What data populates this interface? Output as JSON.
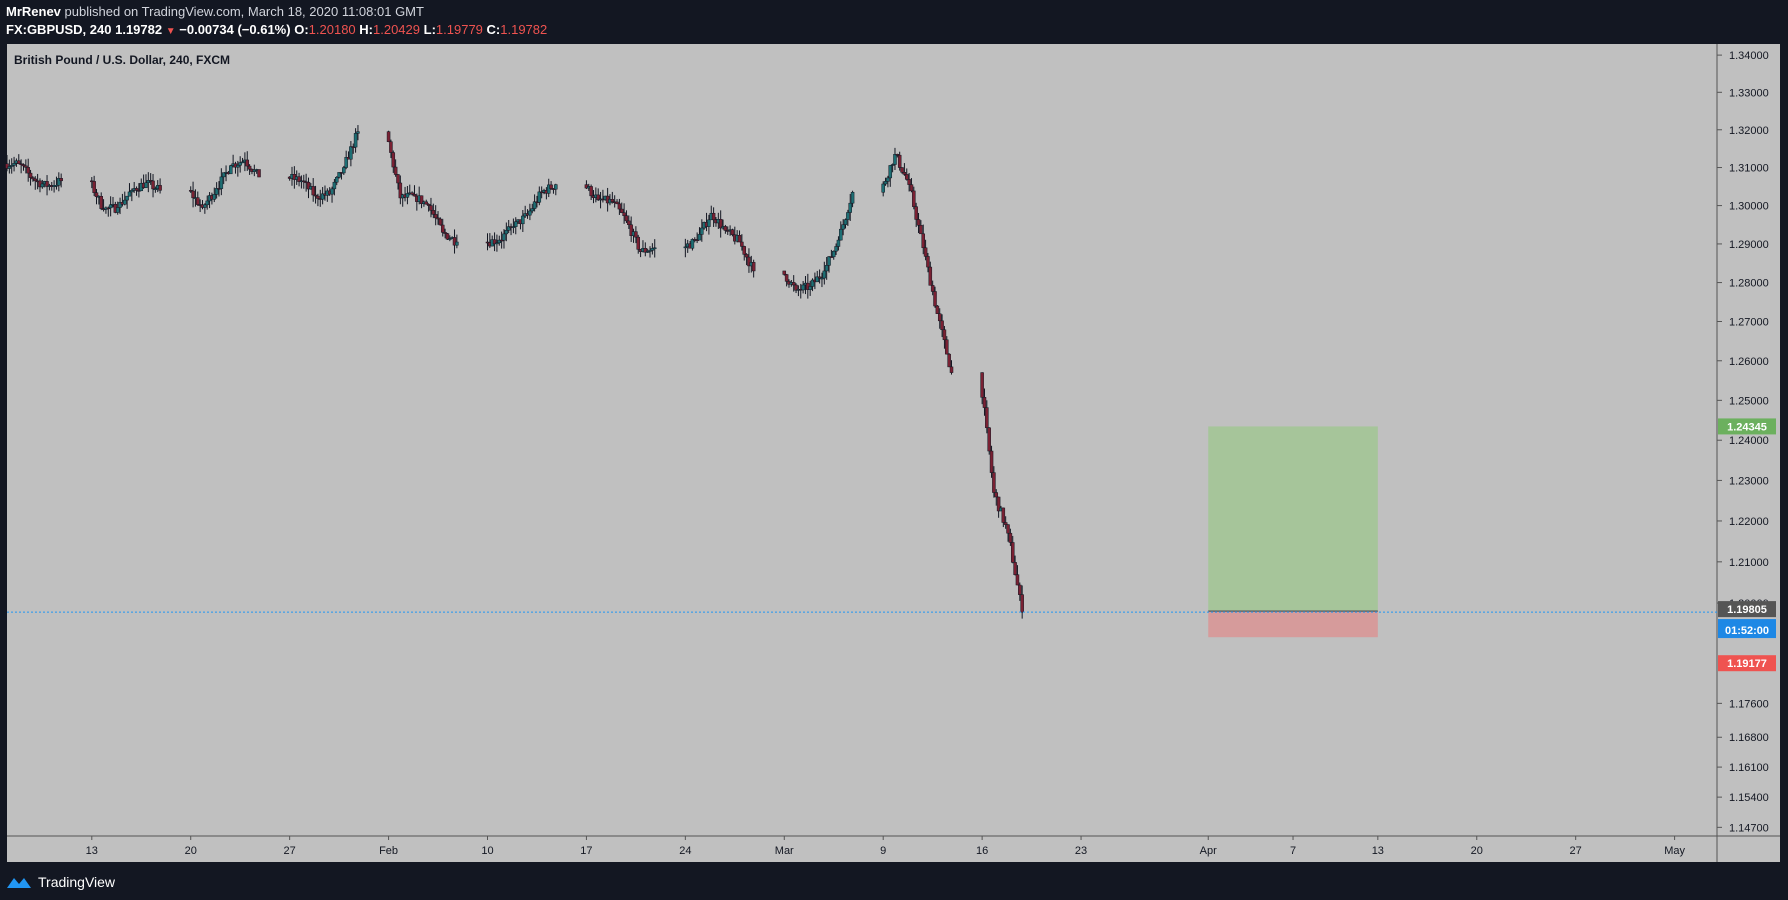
{
  "header": {
    "author": "MrRenev",
    "published": "published on TradingView.com, March 18, 2020 11:08:01 GMT",
    "symbol": "FX:GBPUSD, 240",
    "last": "1.19782",
    "change": "−0.00734 (−0.61%)",
    "o_label": "O:",
    "o": "1.20180",
    "h_label": "H:",
    "h": "1.20429",
    "l_label": "L:",
    "l": "1.19779",
    "c_label": "C:",
    "c": "1.19782"
  },
  "footer": {
    "brand": "TradingView",
    "icon": "tradingview-logo-icon"
  },
  "colors": {
    "plot_bg": "#c0c0c0",
    "page_bg": "#131722",
    "up": "#1e6f74",
    "down": "#7a2133",
    "target": "#a6c59a",
    "stop": "#d69b9b",
    "price_line": "#2196f3"
  },
  "chart_data": {
    "type": "candlestick",
    "title": "British Pound / U.S. Dollar, 240, FXCM",
    "x_ticks": [
      "13",
      "20",
      "27",
      "Feb",
      "10",
      "17",
      "24",
      "Mar",
      "9",
      "16",
      "23",
      "Apr",
      "7",
      "13",
      "20",
      "27",
      "May"
    ],
    "y_ticks": [
      "1.34000",
      "1.33000",
      "1.32000",
      "1.31000",
      "1.30000",
      "1.29000",
      "1.28000",
      "1.27000",
      "1.26000",
      "1.25000",
      "1.24000",
      "1.23000",
      "1.22000",
      "1.21000",
      "1.20000",
      "1.17600",
      "1.16800",
      "1.16100",
      "1.15400",
      "1.14700"
    ],
    "y_scale": "log",
    "ylim": [
      1.145,
      1.343
    ],
    "xlim": [
      "2020-01-07",
      "2020-05-07"
    ],
    "price_labels": [
      {
        "value": "1.24345",
        "role": "target",
        "color": "#6cb05e"
      },
      {
        "value": "1.19805",
        "role": "entry",
        "color": "#555555"
      },
      {
        "value": "1.19782",
        "role": "last",
        "color": "#1e88e5"
      },
      {
        "value": "01:52:00",
        "role": "countdown",
        "color": "#1e88e5"
      },
      {
        "value": "1.19177",
        "role": "stop",
        "color": "#ef5350"
      }
    ],
    "position": {
      "type": "short",
      "entry": 1.19805,
      "target": 1.24345,
      "stop": 1.19177,
      "start": "2020-04-01",
      "end": "2020-04-13"
    },
    "last_price": 1.19782,
    "series": [
      {
        "date": "2020-01-07",
        "close": 1.311
      },
      {
        "date": "2020-01-08",
        "close": 1.307
      },
      {
        "date": "2020-01-09",
        "close": 1.305
      },
      {
        "date": "2020-01-10",
        "close": 1.3065
      },
      {
        "date": "2020-01-13",
        "close": 1.299
      },
      {
        "date": "2020-01-14",
        "close": 1.2995
      },
      {
        "date": "2020-01-15",
        "close": 1.304
      },
      {
        "date": "2020-01-16",
        "close": 1.306
      },
      {
        "date": "2020-01-17",
        "close": 1.304
      },
      {
        "date": "2020-01-20",
        "close": 1.2995
      },
      {
        "date": "2020-01-21",
        "close": 1.3045
      },
      {
        "date": "2020-01-22",
        "close": 1.3105
      },
      {
        "date": "2020-01-23",
        "close": 1.312
      },
      {
        "date": "2020-01-24",
        "close": 1.3075
      },
      {
        "date": "2020-01-27",
        "close": 1.3065
      },
      {
        "date": "2020-01-28",
        "close": 1.3025
      },
      {
        "date": "2020-01-29",
        "close": 1.303
      },
      {
        "date": "2020-01-30",
        "close": 1.31
      },
      {
        "date": "2020-01-31",
        "close": 1.3195
      },
      {
        "date": "2020-02-03",
        "close": 1.302
      },
      {
        "date": "2020-02-04",
        "close": 1.3025
      },
      {
        "date": "2020-02-05",
        "close": 1.3
      },
      {
        "date": "2020-02-06",
        "close": 1.293
      },
      {
        "date": "2020-02-07",
        "close": 1.2905
      },
      {
        "date": "2020-02-10",
        "close": 1.291
      },
      {
        "date": "2020-02-11",
        "close": 1.2945
      },
      {
        "date": "2020-02-12",
        "close": 1.2975
      },
      {
        "date": "2020-02-13",
        "close": 1.3035
      },
      {
        "date": "2020-02-14",
        "close": 1.3055
      },
      {
        "date": "2020-02-17",
        "close": 1.3015
      },
      {
        "date": "2020-02-18",
        "close": 1.301
      },
      {
        "date": "2020-02-19",
        "close": 1.296
      },
      {
        "date": "2020-02-20",
        "close": 1.288
      },
      {
        "date": "2020-02-21",
        "close": 1.289
      },
      {
        "date": "2020-02-24",
        "close": 1.291
      },
      {
        "date": "2020-02-25",
        "close": 1.298
      },
      {
        "date": "2020-02-26",
        "close": 1.2935
      },
      {
        "date": "2020-02-27",
        "close": 1.2905
      },
      {
        "date": "2020-02-28",
        "close": 1.283
      },
      {
        "date": "2020-03-02",
        "close": 1.278
      },
      {
        "date": "2020-03-03",
        "close": 1.279
      },
      {
        "date": "2020-03-04",
        "close": 1.283
      },
      {
        "date": "2020-03-05",
        "close": 1.291
      },
      {
        "date": "2020-03-06",
        "close": 1.3035
      },
      {
        "date": "2020-03-09",
        "close": 1.3135
      },
      {
        "date": "2020-03-10",
        "close": 1.3055
      },
      {
        "date": "2020-03-11",
        "close": 1.289
      },
      {
        "date": "2020-03-12",
        "close": 1.272
      },
      {
        "date": "2020-03-13",
        "close": 1.257
      },
      {
        "date": "2020-03-16",
        "close": 1.227
      },
      {
        "date": "2020-03-17",
        "close": 1.217
      },
      {
        "date": "2020-03-18",
        "close": 1.1978
      }
    ]
  }
}
